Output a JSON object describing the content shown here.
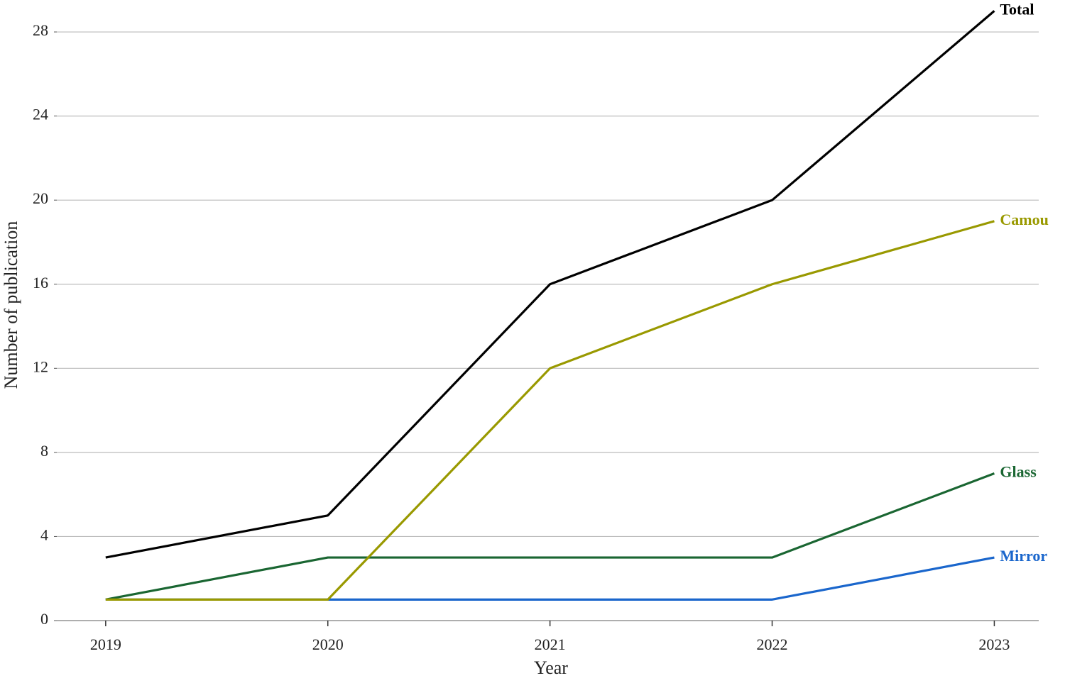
{
  "chart_data": {
    "type": "line",
    "x_label": "Year",
    "y_label": "Number of publication",
    "x": [
      2019,
      2020,
      2021,
      2022,
      2023
    ],
    "series": [
      {
        "name": "Total",
        "color": "#000000",
        "values": [
          3,
          5,
          16,
          20,
          29
        ]
      },
      {
        "name": "Camou",
        "color": "#999900",
        "values": [
          1,
          1,
          12,
          16,
          19
        ]
      },
      {
        "name": "Glass",
        "color": "#1a6632",
        "values": [
          1,
          3,
          3,
          3,
          7
        ]
      },
      {
        "name": "Mirror",
        "color": "#1a66cc",
        "values": [
          1,
          1,
          1,
          1,
          3
        ]
      }
    ],
    "xlim": [
      2018.78,
      2023.2
    ],
    "xticks": [
      2019,
      2020,
      2021,
      2022,
      2023
    ],
    "ylim": [
      0,
      29
    ],
    "yticks": [
      0,
      4,
      8,
      12,
      16,
      20,
      24,
      28
    ],
    "grid": true
  }
}
